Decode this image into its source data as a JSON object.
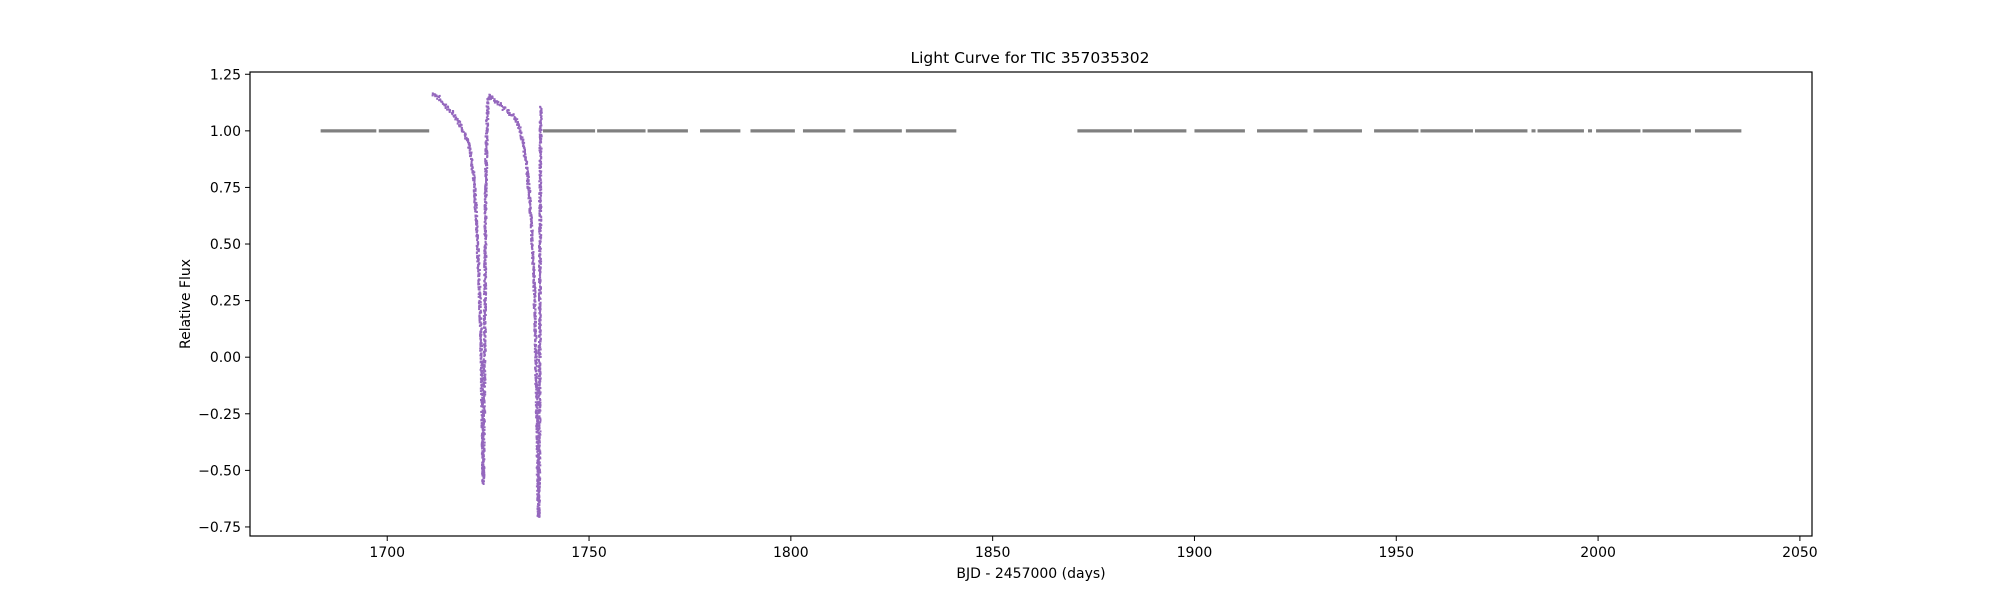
{
  "chart_data": {
    "type": "scatter",
    "title": "Light Curve for TIC 357035302",
    "xlabel": "BJD - 2457000 (days)",
    "ylabel": "Relative Flux",
    "xlim": [
      1666,
      2053
    ],
    "ylim": [
      -0.79,
      1.26
    ],
    "xticks": [
      1700,
      1750,
      1800,
      1850,
      1900,
      1950,
      2000,
      2050
    ],
    "xtick_labels": [
      "1700",
      "1750",
      "1800",
      "1850",
      "1900",
      "1950",
      "2000",
      "2050"
    ],
    "yticks": [
      1.25,
      1.0,
      0.75,
      0.5,
      0.25,
      0.0,
      -0.25,
      -0.5,
      -0.75
    ],
    "ytick_labels": [
      "1.25",
      "1.00",
      "0.75",
      "0.50",
      "0.25",
      "0.00",
      "−0.25",
      "−0.50",
      "−0.75"
    ],
    "grid": false,
    "legend": "none",
    "series": [
      {
        "color": "#808080",
        "role": "flat",
        "segments": [
          [
            1683.5,
            1697.3
          ],
          [
            1697.9,
            1710.4
          ],
          [
            1738.6,
            1751.5
          ],
          [
            1752.0,
            1764.0
          ],
          [
            1764.5,
            1774.5
          ],
          [
            1777.5,
            1787.5
          ],
          [
            1790.0,
            1801.0
          ],
          [
            1803.0,
            1813.5
          ],
          [
            1815.5,
            1827.5
          ],
          [
            1828.5,
            1841.0
          ],
          [
            1871.0,
            1884.5
          ],
          [
            1885.0,
            1898.0
          ],
          [
            1900.0,
            1912.5
          ],
          [
            1915.5,
            1928.0
          ],
          [
            1929.5,
            1941.5
          ],
          [
            1944.5,
            1955.5
          ],
          [
            1956.0,
            1969.0
          ],
          [
            1969.5,
            1982.5
          ],
          [
            1983.5,
            1984.5
          ],
          [
            1985.0,
            1996.5
          ],
          [
            1997.5,
            1998.5
          ],
          [
            1999.5,
            2010.5
          ],
          [
            2011.0,
            2023.0
          ],
          [
            2024.0,
            2035.5
          ]
        ],
        "flux": 1.0
      },
      {
        "color": "#9467bd",
        "role": "drift",
        "x": [
          1711.0,
          1712.0,
          1713.5,
          1715.0,
          1716.5,
          1718.0,
          1719.5,
          1720.5,
          1721.3,
          1721.9,
          1722.4,
          1722.8,
          1723.1,
          1723.35,
          1723.55,
          1723.9,
          1724.1,
          1724.3,
          1724.5,
          1724.7,
          1725.0,
          1726.0,
          1727.5,
          1729.0,
          1730.5,
          1731.8,
          1732.8,
          1733.6,
          1734.3,
          1735.0,
          1735.6,
          1736.2,
          1736.6,
          1736.9,
          1737.1,
          1737.25,
          1737.4,
          1737.5,
          1737.6,
          1737.7,
          1737.8
        ],
        "y": [
          1.17,
          1.16,
          1.13,
          1.1,
          1.07,
          1.03,
          0.97,
          0.9,
          0.78,
          0.6,
          0.4,
          0.2,
          0.0,
          -0.3,
          -0.55,
          0.0,
          0.6,
          0.9,
          1.05,
          1.14,
          1.16,
          1.15,
          1.12,
          1.1,
          1.08,
          1.05,
          1.0,
          0.93,
          0.85,
          0.72,
          0.55,
          0.3,
          0.0,
          -0.3,
          -0.55,
          -0.7,
          -0.6,
          -0.1,
          0.4,
          0.8,
          1.11
        ]
      }
    ]
  }
}
